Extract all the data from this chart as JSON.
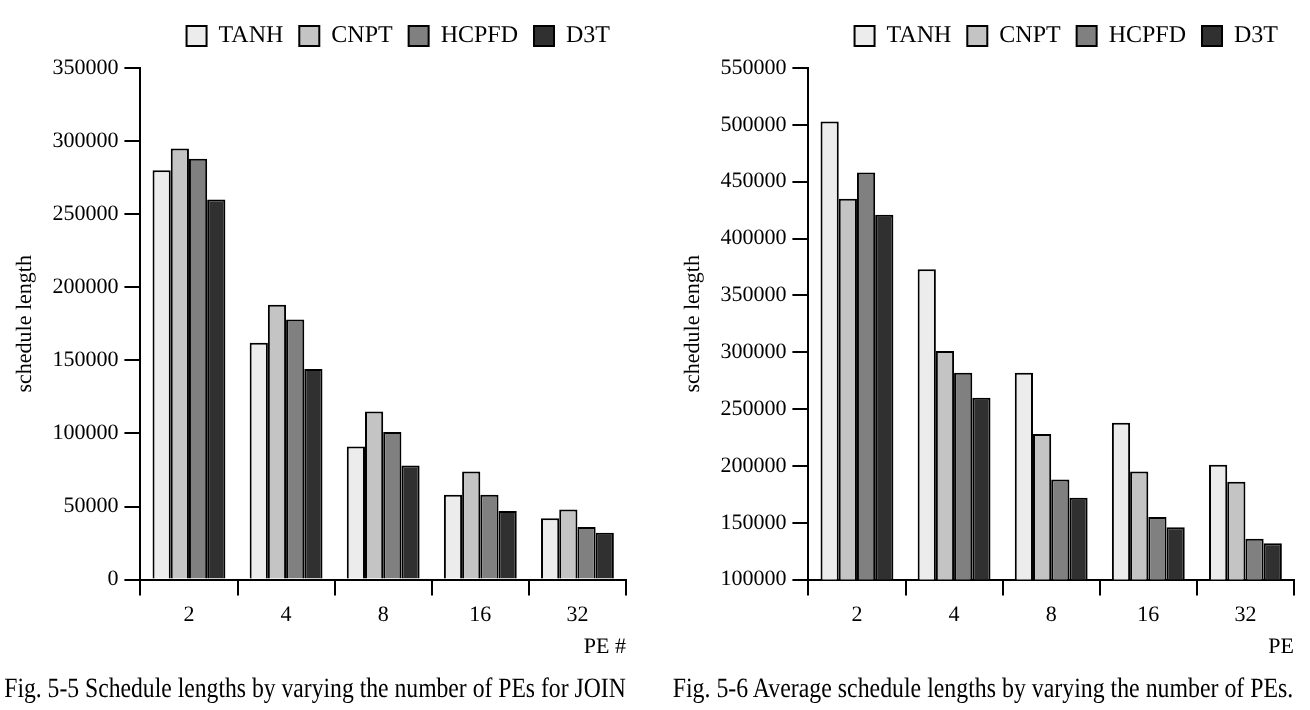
{
  "chart_data": [
    {
      "type": "bar",
      "title": "Fig. 5-5 Schedule lengths by varying the number of PEs for JOIN",
      "xlabel": "PE #",
      "ylabel": "schedule length",
      "categories": [
        "2",
        "4",
        "8",
        "16",
        "32"
      ],
      "series": [
        {
          "name": "TANH",
          "color": "#ececec",
          "values": [
            280000,
            162000,
            91000,
            58000,
            42000
          ]
        },
        {
          "name": "CNPT",
          "color": "#c4c4c4",
          "values": [
            295000,
            188000,
            115000,
            74000,
            48000
          ]
        },
        {
          "name": "HCPFD",
          "color": "#808080",
          "values": [
            288000,
            178000,
            101000,
            58000,
            36000
          ]
        },
        {
          "name": "D3T",
          "color": "#303030",
          "values": [
            260000,
            144000,
            78000,
            47000,
            32000
          ]
        }
      ],
      "ylim": [
        0,
        350000
      ],
      "yticks": [
        0,
        50000,
        100000,
        150000,
        200000,
        250000,
        300000,
        350000
      ],
      "grid": false,
      "legend": "top right"
    },
    {
      "type": "bar",
      "title": "Fig. 5-6 Average schedule lengths by varying the number of PEs.",
      "xlabel": "PE",
      "ylabel": "schedule length",
      "categories": [
        "2",
        "4",
        "8",
        "16",
        "32"
      ],
      "series": [
        {
          "name": "TANH",
          "color": "#ececec",
          "values": [
            503000,
            373000,
            282000,
            238000,
            201000
          ]
        },
        {
          "name": "CNPT",
          "color": "#c4c4c4",
          "values": [
            435000,
            301000,
            228000,
            195000,
            186000
          ]
        },
        {
          "name": "HCPFD",
          "color": "#808080",
          "values": [
            458000,
            282000,
            188000,
            155000,
            136000
          ]
        },
        {
          "name": "D3T",
          "color": "#303030",
          "values": [
            421000,
            260000,
            172000,
            146000,
            132000
          ]
        }
      ],
      "ylim": [
        100000,
        550000
      ],
      "yticks": [
        100000,
        150000,
        200000,
        250000,
        300000,
        350000,
        400000,
        450000,
        500000,
        550000
      ],
      "grid": false,
      "legend": "top right"
    }
  ]
}
